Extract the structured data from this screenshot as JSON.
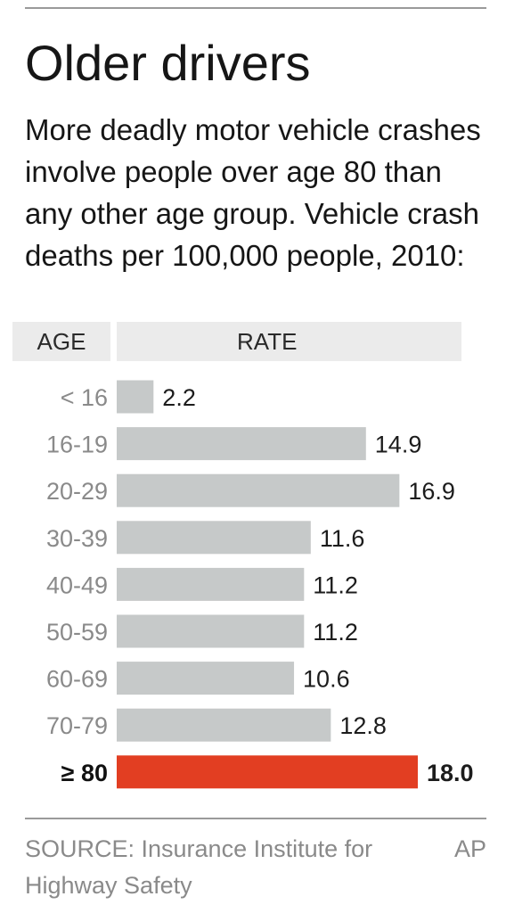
{
  "title": "Older drivers",
  "subtitle": "More deadly motor vehicle crashes involve people over age 80 than any other age group. Vehicle crash deaths per 100,000 people, 2010:",
  "source": "SOURCE: Insurance Institute for Highway Safety",
  "credit": "AP",
  "colors": {
    "bar": "#c6c9c9",
    "highlight_bar": "#e23e22",
    "header_bg": "#ebebeb",
    "category_text": "#8a8a8a"
  },
  "chart_data": {
    "type": "bar",
    "orientation": "horizontal",
    "column_headers": [
      "AGE",
      "RATE"
    ],
    "categories": [
      "< 16",
      "16-19",
      "20-29",
      "30-39",
      "40-49",
      "50-59",
      "60-69",
      "70-79",
      "≥ 80"
    ],
    "values": [
      2.2,
      14.9,
      16.9,
      11.6,
      11.2,
      11.2,
      10.6,
      12.8,
      18.0
    ],
    "value_labels": [
      "2.2",
      "14.9",
      "16.9",
      "11.6",
      "11.2",
      "11.2",
      "10.6",
      "12.8",
      "18.0"
    ],
    "highlighted_category": "≥ 80",
    "xlim": [
      0,
      18.0
    ],
    "grid": false,
    "legend": "none"
  }
}
